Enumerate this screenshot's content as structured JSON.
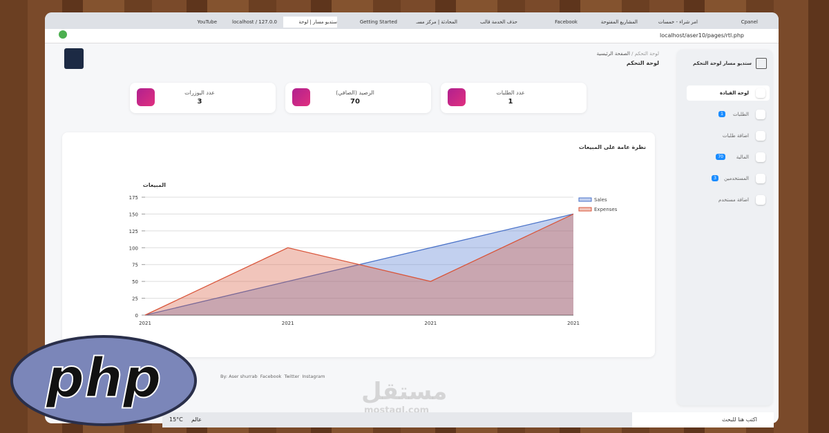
{
  "browser": {
    "tabs": [
      "Cpanel",
      "امر شراء - خمسات",
      "المشاريع المفتوحة",
      "Facebook",
      "حذف الخدمة قالب",
      "المحادثة | مركز مسـ",
      "Getting Started",
      "ستديو مسار | لوحة",
      "localhost / 127.0.0",
      "YouTube"
    ],
    "url": "localhost/aser10/pages/rtl.php"
  },
  "sidebar": {
    "brand": "ستديو مسار لوحة التحكم",
    "items": [
      {
        "label": "لوحة القيادة"
      },
      {
        "label": "الطلبات",
        "badge": 1
      },
      {
        "label": "اضافة طلبات"
      },
      {
        "label": "المالية",
        "badge": 70
      },
      {
        "label": "المستخدمين",
        "badge": 3
      },
      {
        "label": "اضافة مستخدم"
      }
    ]
  },
  "header": {
    "breadcrumb": [
      "لوحة التحكم",
      "الصفحة الرئيسية"
    ],
    "title": "لوحة التحكم"
  },
  "stats": [
    {
      "label": "عدد الطلبات",
      "value": 1
    },
    {
      "label": "الرصيد (الصافي)",
      "value": 70
    },
    {
      "label": "عدد اليوزرات",
      "value": 3
    }
  ],
  "chart_data": {
    "type": "area",
    "card_title": "نظرة عامة على المبيعات",
    "title": "المبيعات",
    "categories": [
      "2021",
      "2021",
      "2021",
      "2021"
    ],
    "series": [
      {
        "name": "Sales",
        "color": "#4a72c8",
        "values": [
          0,
          50,
          100,
          150
        ]
      },
      {
        "name": "Expenses",
        "color": "#d9553a",
        "values": [
          0,
          100,
          50,
          150
        ]
      }
    ],
    "ylim": [
      0,
      175
    ],
    "yticks": [
      0,
      25,
      50,
      75,
      100,
      125,
      150,
      175
    ],
    "grid": true,
    "legend": "top-right"
  },
  "footer": {
    "author": "By: Aser shurrab",
    "links": [
      "Facebook",
      "Twitter",
      "Instagram"
    ]
  },
  "taskbar": {
    "search": "اكتب هنا للبحث",
    "temperature": "15°C",
    "weather": "عالم"
  },
  "watermark": {
    "arabic": "مستقل",
    "latin": "mostaql.com"
  },
  "logo": "php"
}
